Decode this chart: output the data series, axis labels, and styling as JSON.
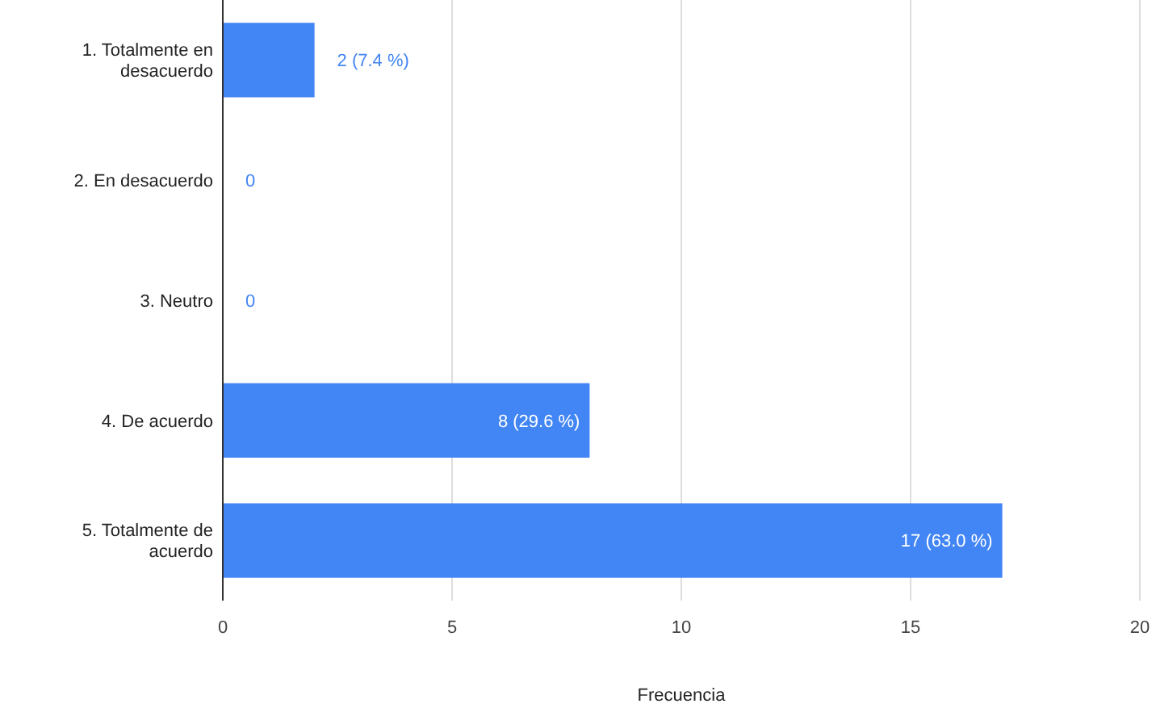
{
  "chart_data": {
    "type": "bar",
    "orientation": "horizontal",
    "xlabel": "Frecuencia",
    "categories": [
      "1. Totalmente en desacuerdo",
      "2. En desacuerdo",
      "3. Neutro",
      "4. De acuerdo",
      "5. Totalmente de acuerdo"
    ],
    "values": [
      2,
      0,
      0,
      8,
      17
    ],
    "color": "#4285f4",
    "value_labels": [
      "2 (7.4 %)",
      "0",
      "0",
      "8 (29.6 %)",
      "17 (63.0 %)"
    ],
    "xlim": [
      0,
      20
    ],
    "xticks": [
      0,
      5,
      10,
      15,
      20
    ],
    "grid": "x"
  }
}
